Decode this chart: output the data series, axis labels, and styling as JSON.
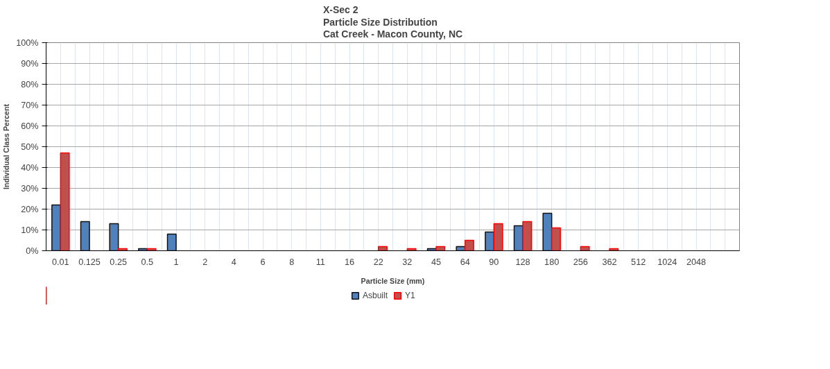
{
  "chart_data": {
    "type": "bar",
    "title": "X-Sec 2\nParticle Size Distribution\nCat Creek - Macon County, NC",
    "xlabel": "Particle Size (mm)",
    "ylabel": "Individual Class Percent",
    "categories": [
      "0.01",
      "0.125",
      "0.25",
      "0.5",
      "1",
      "2",
      "4",
      "6",
      "8",
      "11",
      "16",
      "22",
      "32",
      "45",
      "64",
      "90",
      "128",
      "180",
      "256",
      "362",
      "512",
      "1024",
      "2048",
      null
    ],
    "series": [
      {
        "name": "Asbuilt",
        "color": "#4f81bd",
        "values": [
          22,
          14,
          13,
          1,
          8,
          0,
          0,
          0,
          0,
          0,
          0,
          0,
          0,
          1,
          2,
          9,
          12,
          18,
          0,
          0,
          0,
          0,
          0,
          0
        ]
      },
      {
        "name": "Y1",
        "color": "#c0504d",
        "values": [
          47,
          0,
          1,
          1,
          0,
          0,
          0,
          0,
          0,
          0,
          0,
          2,
          1,
          2,
          5,
          13,
          14,
          11,
          2,
          1,
          0,
          0,
          0,
          0
        ]
      }
    ],
    "ylim": [
      0,
      100
    ],
    "yticks": [
      {
        "value": 0,
        "label": "0%"
      },
      {
        "value": 10,
        "label": "10%"
      },
      {
        "value": 20,
        "label": "20%"
      },
      {
        "value": 30,
        "label": "30%"
      },
      {
        "value": 40,
        "label": "40%"
      },
      {
        "value": 50,
        "label": "50%"
      },
      {
        "value": 60,
        "label": "60%"
      },
      {
        "value": 70,
        "label": "70%"
      },
      {
        "value": 80,
        "label": "80%"
      },
      {
        "value": 90,
        "label": "90%"
      },
      {
        "value": 100,
        "label": "100%"
      }
    ],
    "grid": true,
    "legend": "bottom"
  }
}
